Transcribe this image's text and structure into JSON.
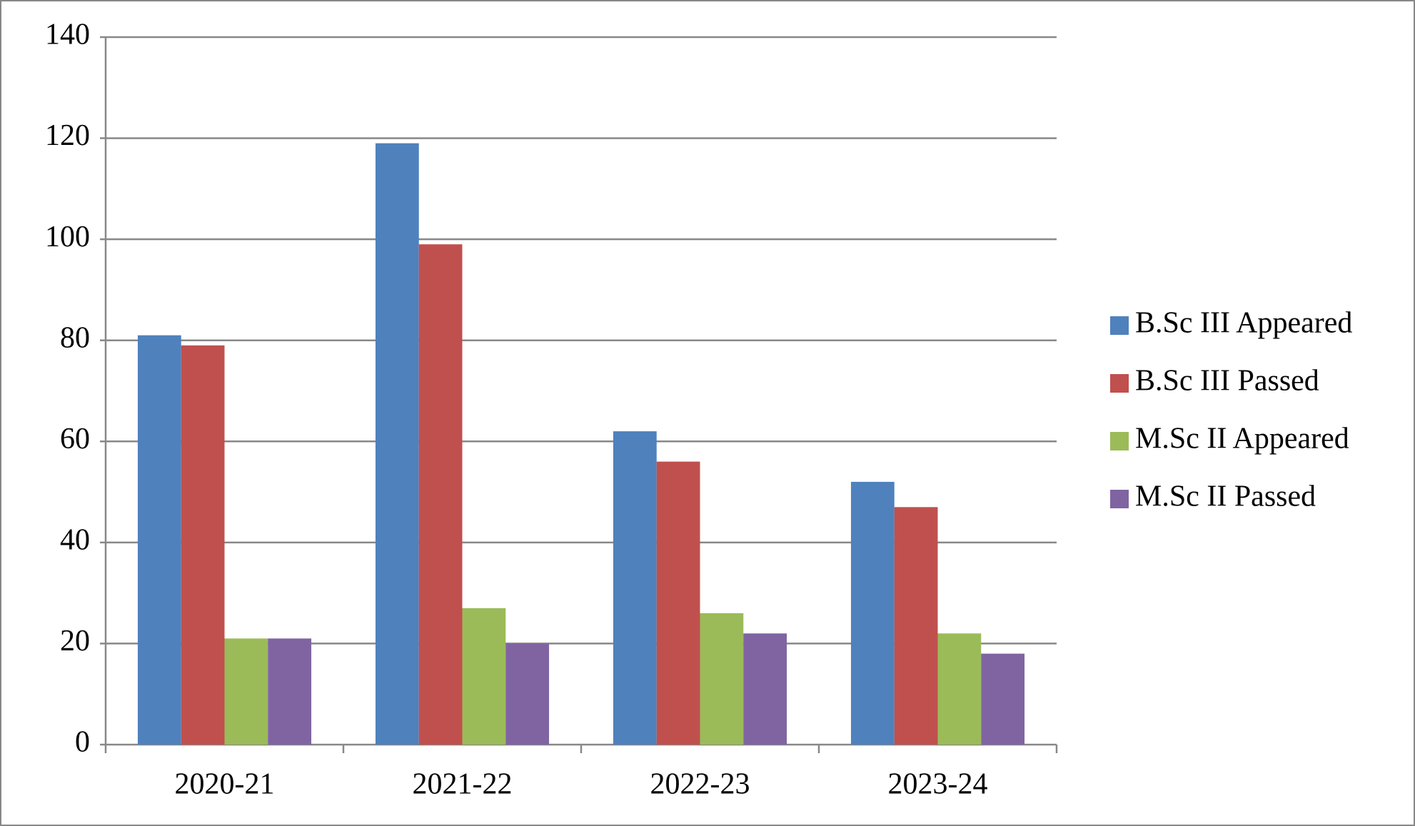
{
  "chart_data": {
    "type": "bar",
    "categories": [
      "2020-21",
      "2021-22",
      "2022-23",
      "2023-24"
    ],
    "series": [
      {
        "name": "B.Sc III Appeared",
        "color": "#4f81bd",
        "values": [
          81,
          119,
          62,
          52
        ]
      },
      {
        "name": "B.Sc III Passed",
        "color": "#c0504d",
        "values": [
          79,
          99,
          56,
          47
        ]
      },
      {
        "name": "M.Sc II Appeared",
        "color": "#9bbb59",
        "values": [
          21,
          27,
          26,
          22
        ]
      },
      {
        "name": "M.Sc II Passed",
        "color": "#8064a2",
        "values": [
          21,
          20,
          22,
          18
        ]
      }
    ],
    "ylim": [
      0,
      140
    ],
    "yticks": [
      0,
      20,
      40,
      60,
      80,
      100,
      120,
      140
    ],
    "grid": true,
    "legend": "right"
  }
}
